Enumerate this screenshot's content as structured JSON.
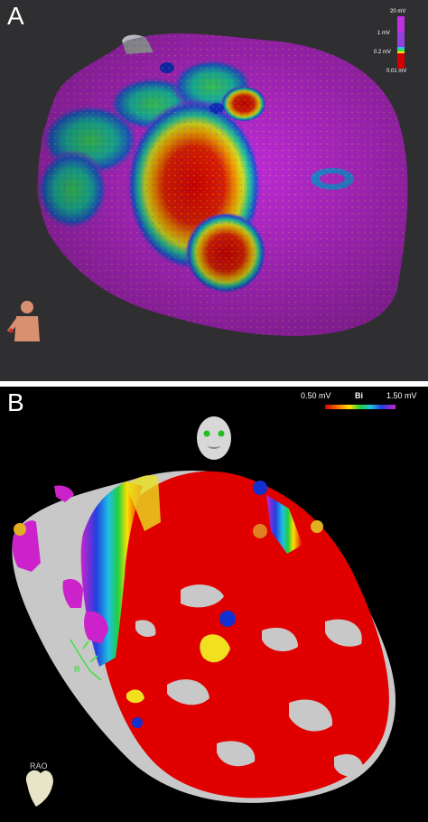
{
  "panel_a": {
    "label": "A",
    "scale": {
      "max": "20 mV",
      "mid_high": "1 mV",
      "mid_low": "0.2 mV",
      "min": "0.01 mV"
    },
    "colors": {
      "healthy": "#c02ad8",
      "scar": "#d40000",
      "background": "#2f2f31"
    }
  },
  "panel_b": {
    "label": "B",
    "scale": {
      "min": "0.50 mV",
      "mode": "Bi",
      "max": "1.50 mV"
    },
    "view_label": "RAO",
    "annotation": "R",
    "colors": {
      "scar": "#e00000",
      "healthy": "#cc22cc",
      "unmapped": "#c8c8c8",
      "background": "#000000"
    }
  }
}
